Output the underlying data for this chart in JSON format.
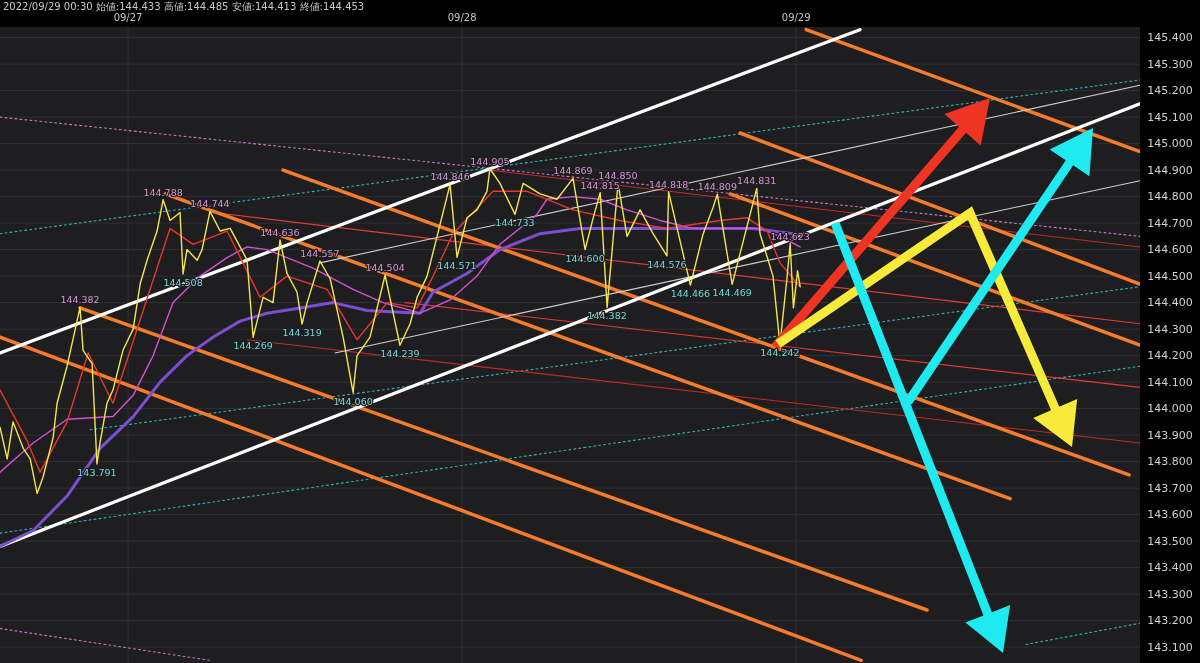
{
  "chart_data": {
    "type": "line",
    "title": "2022/09/29 00:30 始値:144.433 高値:144.485 安値:144.413 終値:144.453",
    "xlim": [
      "2022-09-26T14:48",
      "2022-09-30T00:42"
    ],
    "ylim": [
      143.04,
      145.44
    ],
    "xticks": [
      {
        "value": "2022-09-27",
        "label": "09/27"
      },
      {
        "value": "2022-09-28",
        "label": "09/28"
      },
      {
        "value": "2022-09-29",
        "label": "09/29"
      }
    ],
    "yticks": [
      {
        "value": 143.1,
        "label": "143.100"
      },
      {
        "value": 143.2,
        "label": "143.200"
      },
      {
        "value": 143.3,
        "label": "143.300"
      },
      {
        "value": 143.4,
        "label": "143.400"
      },
      {
        "value": 143.5,
        "label": "143.500"
      },
      {
        "value": 143.6,
        "label": "143.600"
      },
      {
        "value": 143.7,
        "label": "143.700"
      },
      {
        "value": 143.8,
        "label": "143.800"
      },
      {
        "value": 143.9,
        "label": "143.900"
      },
      {
        "value": 144.0,
        "label": "144.000"
      },
      {
        "value": 144.1,
        "label": "144.100"
      },
      {
        "value": 144.2,
        "label": "144.200"
      },
      {
        "value": 144.3,
        "label": "144.300"
      },
      {
        "value": 144.4,
        "label": "144.400"
      },
      {
        "value": 144.5,
        "label": "144.500"
      },
      {
        "value": 144.6,
        "label": "144.600"
      },
      {
        "value": 144.7,
        "label": "144.700"
      },
      {
        "value": 144.8,
        "label": "144.800"
      },
      {
        "value": 144.9,
        "label": "144.900"
      },
      {
        "value": 145.0,
        "label": "145.000"
      },
      {
        "value": 145.1,
        "label": "145.100"
      },
      {
        "value": 145.2,
        "label": "145.200"
      },
      {
        "value": 145.3,
        "label": "145.300"
      },
      {
        "value": 145.4,
        "label": "145.400"
      }
    ],
    "grid": true,
    "marker": "none",
    "series": [
      {
        "color": "#f2e64a",
        "x": [
          "2022-09-26T14:48",
          "2022-09-26T15:19",
          "2022-09-26T15:44",
          "2022-09-26T16:28",
          "2022-09-26T16:58",
          "2022-09-26T17:28",
          "2022-09-26T17:53",
          "2022-09-26T18:37",
          "2022-09-26T18:54",
          "2022-09-26T19:37",
          "2022-09-26T20:20",
          "2022-09-26T20:33",
          "2022-09-26T20:46",
          "2022-09-26T21:25",
          "2022-09-26T21:46",
          "2022-09-26T21:59",
          "2022-09-26T22:29",
          "2022-09-26T22:55",
          "2022-09-26T23:38",
          "2022-09-27T00:22",
          "2022-09-27T00:52",
          "2022-09-27T01:22",
          "2022-09-27T02:05",
          "2022-09-27T02:31",
          "2022-09-27T03:01",
          "2022-09-27T03:44",
          "2022-09-27T03:57",
          "2022-09-27T04:14",
          "2022-09-27T04:58",
          "2022-09-27T05:19",
          "2022-09-27T05:53",
          "2022-09-27T06:37",
          "2022-09-27T07:20",
          "2022-09-27T08:03",
          "2022-09-27T08:33",
          "2022-09-27T08:59",
          "2022-09-27T09:42",
          "2022-09-27T10:25",
          "2022-09-27T10:55",
          "2022-09-27T11:25",
          "2022-09-27T12:08",
          "2022-09-27T12:30",
          "2022-09-27T12:52",
          "2022-09-27T13:47",
          "2022-09-27T14:31",
          "2022-09-27T15:27",
          "2022-09-27T16:10",
          "2022-09-27T16:27",
          "2022-09-27T17:23",
          "2022-09-27T18:28",
          "2022-09-27T19:32",
          "2022-09-27T20:16",
          "2022-09-27T20:46",
          "2022-09-27T21:29",
          "2022-09-27T22:12",
          "2022-09-27T23:08",
          "2022-09-27T23:38",
          "2022-09-28T00:21",
          "2022-09-28T01:04",
          "2022-09-28T01:47",
          "2022-09-28T02:00",
          "2022-09-28T02:43",
          "2022-09-28T03:48",
          "2022-09-28T04:23",
          "2022-09-28T05:36",
          "2022-09-28T06:49",
          "2022-09-28T07:58",
          "2022-09-28T08:50",
          "2022-09-28T09:25",
          "2022-09-28T09:55",
          "2022-09-28T10:25",
          "2022-09-28T11:12",
          "2022-09-28T11:51",
          "2022-09-28T12:47",
          "2022-09-28T13:43",
          "2022-09-28T14:43",
          "2022-09-28T14:50",
          "2022-09-28T16:24",
          "2022-09-28T17:19",
          "2022-09-28T18:02",
          "2022-09-28T18:20",
          "2022-09-28T19:24",
          "2022-09-28T21:10",
          "2022-09-28T21:24",
          "2022-09-28T22:20",
          "2022-09-28T22:50",
          "2022-09-28T23:20",
          "2022-09-28T23:34",
          "2022-09-28T23:48",
          "2022-09-29T00:06",
          "2022-09-29T00:17"
        ],
        "values": [
          143.93,
          143.81,
          143.95,
          143.85,
          143.81,
          143.68,
          143.74,
          143.89,
          144.02,
          144.16,
          144.33,
          144.382,
          144.22,
          144.17,
          143.791,
          143.87,
          144.02,
          144.07,
          144.22,
          144.3,
          144.47,
          144.56,
          144.67,
          144.788,
          144.71,
          144.74,
          144.508,
          144.6,
          144.56,
          144.6,
          144.744,
          144.67,
          144.68,
          144.61,
          144.56,
          144.269,
          144.42,
          144.4,
          144.636,
          144.51,
          144.44,
          144.319,
          144.4,
          144.557,
          144.49,
          144.27,
          144.06,
          144.2,
          144.27,
          144.504,
          144.239,
          144.32,
          144.42,
          144.5,
          144.65,
          144.846,
          144.571,
          144.72,
          144.75,
          144.82,
          144.905,
          144.85,
          144.733,
          144.85,
          144.81,
          144.79,
          144.869,
          144.6,
          144.72,
          144.815,
          144.382,
          144.85,
          144.65,
          144.75,
          144.66,
          144.576,
          144.818,
          144.466,
          144.66,
          144.76,
          144.809,
          144.469,
          144.831,
          144.66,
          144.5,
          144.242,
          144.49,
          144.623,
          144.38,
          144.52,
          144.46
        ]
      },
      {
        "color": "#e8372c",
        "x": [
          "2022-09-26T14:48",
          "2022-09-26T16:44",
          "2022-09-26T17:41",
          "2022-09-26T19:37",
          "2022-09-26T21:08",
          "2022-09-26T22:55",
          "2022-09-27T01:05",
          "2022-09-27T03:01",
          "2022-09-27T04:40",
          "2022-09-27T07:07",
          "2022-09-27T09:29",
          "2022-09-27T11:25",
          "2022-09-27T14:18",
          "2022-09-27T16:27",
          "2022-09-27T18:37",
          "2022-09-27T20:46",
          "2022-09-27T21:55",
          "2022-09-27T23:21",
          "2022-09-28T02:13",
          "2022-09-28T04:40",
          "2022-09-28T07:58",
          "2022-09-28T11:20",
          "2022-09-28T14:43",
          "2022-09-28T18:32",
          "2022-09-28T20:28",
          "2022-09-28T21:55",
          "2022-09-28T22:50",
          "2022-09-29T00:17"
        ],
        "values": [
          144.07,
          143.88,
          143.76,
          143.95,
          144.21,
          144.02,
          144.37,
          144.68,
          144.62,
          144.67,
          144.42,
          144.5,
          144.45,
          144.26,
          144.4,
          144.38,
          144.5,
          144.66,
          144.82,
          144.82,
          144.75,
          144.71,
          144.68,
          144.71,
          144.72,
          144.67,
          144.55,
          144.46
        ]
      },
      {
        "color": "#d64fd6",
        "x": [
          "2022-09-26T14:48",
          "2022-09-26T17:11",
          "2022-09-26T19:37",
          "2022-09-26T22:55",
          "2022-09-27T00:22",
          "2022-09-27T01:48",
          "2022-09-27T03:14",
          "2022-09-27T05:10",
          "2022-09-27T07:07",
          "2022-09-27T08:33",
          "2022-09-27T09:59",
          "2022-09-27T11:25",
          "2022-09-27T13:17",
          "2022-09-27T16:10",
          "2022-09-27T18:19",
          "2022-09-27T20:59",
          "2022-09-27T23:08",
          "2022-09-28T01:04",
          "2022-09-28T02:43",
          "2022-09-28T05:20",
          "2022-09-28T06:06",
          "2022-09-28T07:58",
          "2022-09-28T09:55",
          "2022-09-28T11:51",
          "2022-09-28T14:13",
          "2022-09-28T16:35",
          "2022-09-28T19:02",
          "2022-09-28T21:24",
          "2022-09-28T22:50",
          "2022-09-29T00:17"
        ],
        "values": [
          143.76,
          143.87,
          143.96,
          143.97,
          144.05,
          144.2,
          144.4,
          144.5,
          144.57,
          144.61,
          144.6,
          144.57,
          144.53,
          144.45,
          144.4,
          144.36,
          144.41,
          144.5,
          144.62,
          144.73,
          144.79,
          144.8,
          144.79,
          144.75,
          144.71,
          144.68,
          144.68,
          144.68,
          144.65,
          144.61
        ]
      },
      {
        "color": "#7a4fd0",
        "x": [
          "2022-09-26T14:48",
          "2022-09-26T17:11",
          "2022-09-26T19:37",
          "2022-09-26T21:59",
          "2022-09-27T00:22",
          "2022-09-27T02:18",
          "2022-09-27T04:14",
          "2022-09-27T06:07",
          "2022-09-27T08:03",
          "2022-09-27T09:59",
          "2022-09-27T12:22",
          "2022-09-27T14:44",
          "2022-09-27T17:10",
          "2022-09-27T20:59",
          "2022-09-27T21:55",
          "2022-09-28T00:21",
          "2022-09-28T02:43",
          "2022-09-28T05:36",
          "2022-09-28T08:28",
          "2022-09-28T12:17",
          "2022-09-28T17:05",
          "2022-09-28T20:54",
          "2022-09-28T23:46"
        ],
        "values": [
          143.48,
          143.54,
          143.67,
          143.85,
          143.97,
          144.1,
          144.2,
          144.27,
          144.33,
          144.36,
          144.38,
          144.4,
          144.37,
          144.36,
          144.44,
          144.51,
          144.6,
          144.66,
          144.68,
          144.68,
          144.68,
          144.68,
          144.66
        ]
      },
      {
        "color": "#ffffff",
        "x": [
          "2022-09-26T14:48",
          "2022-09-29T04:35"
        ],
        "values": [
          144.21,
          145.43
        ]
      },
      {
        "color": "#ffffff",
        "x": [
          "2022-09-26T14:48",
          "2022-09-30T00:42"
        ],
        "values": [
          143.48,
          145.15
        ]
      },
      {
        "color": "#d0d0d0",
        "x": [
          "2022-09-27T14:52",
          "2022-09-30T00:42"
        ],
        "values": [
          144.21,
          144.86
        ]
      },
      {
        "color": "#d0d0d0",
        "x": [
          "2022-09-27T13:47",
          "2022-09-30T00:42"
        ],
        "values": [
          144.55,
          145.22
        ]
      },
      {
        "color": "#f57c2a",
        "x": [
          "2022-09-29T00:43",
          "2022-09-30T00:42"
        ],
        "values": [
          145.43,
          144.97
        ]
      },
      {
        "color": "#f57c2a",
        "x": [
          "2022-09-28T19:58",
          "2022-09-30T00:42"
        ],
        "values": [
          145.04,
          144.47
        ]
      },
      {
        "color": "#f57c2a",
        "x": [
          "2022-09-28T19:15",
          "2022-09-30T00:42"
        ],
        "values": [
          144.81,
          144.24
        ]
      },
      {
        "color": "#f57c2a",
        "x": [
          "2022-09-27T11:08",
          "2022-09-29T23:55"
        ],
        "values": [
          144.9,
          143.75
        ]
      },
      {
        "color": "#f57c2a",
        "x": [
          "2022-09-27T02:40",
          "2022-09-29T15:22"
        ],
        "values": [
          144.81,
          143.66
        ]
      },
      {
        "color": "#f57c2a",
        "x": [
          "2022-09-26T20:33",
          "2022-09-29T09:24"
        ],
        "values": [
          144.38,
          143.24
        ]
      },
      {
        "color": "#f57c2a",
        "x": [
          "2022-09-26T14:48",
          "2022-09-29T04:40"
        ],
        "values": [
          144.27,
          143.05
        ]
      },
      {
        "color": "#c62828",
        "x": [
          "2022-09-28T02:01",
          "2022-09-30T00:42"
        ],
        "values": [
          144.9,
          144.61
        ]
      },
      {
        "color": "#e53935",
        "x": [
          "2022-09-27T06:07",
          "2022-09-30T00:42"
        ],
        "values": [
          144.74,
          144.32
        ]
      },
      {
        "color": "#e53935",
        "x": [
          "2022-09-27T19:54",
          "2022-09-30T00:42"
        ],
        "values": [
          144.4,
          144.08
        ]
      },
      {
        "color": "#c62828",
        "x": [
          "2022-09-27T08:33",
          "2022-09-30T00:42"
        ],
        "values": [
          144.26,
          143.87
        ]
      },
      {
        "color": "#2bb5b0",
        "line_style": "dotted",
        "x": [
          "2022-09-26T14:48",
          "2022-09-30T00:42"
        ],
        "values": [
          144.66,
          145.24
        ]
      },
      {
        "color": "#2bb5b0",
        "line_style": "dotted",
        "x": [
          "2022-09-26T21:16",
          "2022-09-30T00:42"
        ],
        "values": [
          143.92,
          144.46
        ]
      },
      {
        "color": "#2bb5b0",
        "line_style": "dotted",
        "x": [
          "2022-09-26T14:48",
          "2022-09-30T00:42"
        ],
        "values": [
          143.53,
          144.16
        ]
      },
      {
        "color": "#2bb5b0",
        "line_style": "dotted",
        "x": [
          "2022-09-29T16:30",
          "2022-09-30T00:42"
        ],
        "values": [
          143.11,
          143.19
        ]
      },
      {
        "color": "#c977c9",
        "line_style": "dotted",
        "x": [
          "2022-09-26T14:48",
          "2022-09-30T00:42"
        ],
        "values": [
          145.1,
          144.65
        ]
      },
      {
        "color": "#c977c9",
        "line_style": "dotted",
        "x": [
          "2022-09-26T14:48",
          "2022-09-27T05:53"
        ],
        "values": [
          143.17,
          143.05
        ]
      }
    ],
    "annotations": [
      {
        "text": "144.382",
        "x": "2022-09-26T20:33",
        "y": 144.382
      },
      {
        "text": "143.791",
        "x": "2022-09-26T21:46",
        "y": 143.791
      },
      {
        "text": "144.788",
        "x": "2022-09-27T02:31",
        "y": 144.788
      },
      {
        "text": "144.508",
        "x": "2022-09-27T03:57",
        "y": 144.508
      },
      {
        "text": "144.744",
        "x": "2022-09-27T05:53",
        "y": 144.744
      },
      {
        "text": "144.269",
        "x": "2022-09-27T08:59",
        "y": 144.269
      },
      {
        "text": "144.636",
        "x": "2022-09-27T10:55",
        "y": 144.636
      },
      {
        "text": "144.319",
        "x": "2022-09-27T12:30",
        "y": 144.319
      },
      {
        "text": "144.557",
        "x": "2022-09-27T13:47",
        "y": 144.557
      },
      {
        "text": "144.060",
        "x": "2022-09-27T16:10",
        "y": 144.06
      },
      {
        "text": "144.504",
        "x": "2022-09-27T18:28",
        "y": 144.504
      },
      {
        "text": "144.239",
        "x": "2022-09-27T19:32",
        "y": 144.239
      },
      {
        "text": "144.846",
        "x": "2022-09-27T23:08",
        "y": 144.846
      },
      {
        "text": "144.571",
        "x": "2022-09-27T23:38",
        "y": 144.571
      },
      {
        "text": "144.905",
        "x": "2022-09-28T02:00",
        "y": 144.905
      },
      {
        "text": "144.733",
        "x": "2022-09-28T03:48",
        "y": 144.733
      },
      {
        "text": "144.869",
        "x": "2022-09-28T07:58",
        "y": 144.869
      },
      {
        "text": "144.600",
        "x": "2022-09-28T08:50",
        "y": 144.6
      },
      {
        "text": "144.815",
        "x": "2022-09-28T09:55",
        "y": 144.815
      },
      {
        "text": "144.382",
        "x": "2022-09-28T10:25",
        "y": 144.382
      },
      {
        "text": "144.850",
        "x": "2022-09-28T11:12",
        "y": 144.85
      },
      {
        "text": "144.576",
        "x": "2022-09-28T14:43",
        "y": 144.576
      },
      {
        "text": "144.818",
        "x": "2022-09-28T14:50",
        "y": 144.818
      },
      {
        "text": "144.466",
        "x": "2022-09-28T16:24",
        "y": 144.466
      },
      {
        "text": "144.809",
        "x": "2022-09-28T18:20",
        "y": 144.809
      },
      {
        "text": "144.469",
        "x": "2022-09-28T19:24",
        "y": 144.469
      },
      {
        "text": "144.831",
        "x": "2022-09-28T21:10",
        "y": 144.831
      },
      {
        "text": "144.242",
        "x": "2022-09-28T22:50",
        "y": 144.242
      },
      {
        "text": "144.623",
        "x": "2022-09-28T23:34",
        "y": 144.623
      }
    ]
  }
}
